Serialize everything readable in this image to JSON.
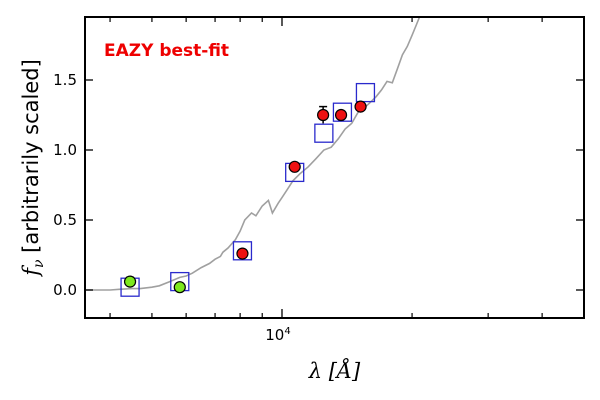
{
  "chart_data": {
    "type": "scatter",
    "title": "",
    "annotation": {
      "text": "EAZY best-fit",
      "color": "#ee0000"
    },
    "ylabel_text": "f",
    "ylabel_subscript": "ν",
    "ylabel_rest": " [arbitrarily scaled]",
    "xlabel_text": "λ [Å]",
    "x_log": true,
    "xlim": [
      3500,
      50000
    ],
    "ylim": [
      -0.2,
      1.95
    ],
    "yticks": [
      0.0,
      0.5,
      1.0,
      1.5
    ],
    "ytick_labels": [
      "0.0",
      "0.5",
      "1.0",
      "1.5"
    ],
    "xtick_major": {
      "value": 10000,
      "label_base": "10",
      "label_exp": "4"
    },
    "xtick_minor": [
      4000,
      5000,
      6000,
      7000,
      8000,
      9000,
      20000,
      30000,
      40000
    ],
    "grid": false,
    "model_sed": {
      "color": "#a0a0a0",
      "x": [
        3500,
        3800,
        4000,
        4200,
        4500,
        4700,
        5000,
        5200,
        5500,
        5800,
        6000,
        6200,
        6500,
        6800,
        7000,
        7200,
        7300,
        7500,
        7800,
        8000,
        8200,
        8500,
        8700,
        9000,
        9300,
        9500,
        9800,
        10000,
        10300,
        10600,
        11000,
        11500,
        12000,
        12500,
        13000,
        13500,
        14000,
        14500,
        15000,
        15500,
        16000,
        16500,
        17000,
        17500,
        18000,
        18500,
        19000,
        19500,
        20000,
        20500,
        21000
      ],
      "y": [
        0.0,
        0.0,
        0.0,
        0.005,
        0.01,
        0.01,
        0.02,
        0.03,
        0.06,
        0.09,
        0.1,
        0.12,
        0.16,
        0.19,
        0.22,
        0.24,
        0.27,
        0.3,
        0.36,
        0.42,
        0.5,
        0.55,
        0.53,
        0.6,
        0.64,
        0.55,
        0.62,
        0.66,
        0.72,
        0.78,
        0.83,
        0.88,
        0.94,
        1.0,
        1.02,
        1.08,
        1.15,
        1.19,
        1.27,
        1.3,
        1.34,
        1.38,
        1.43,
        1.49,
        1.48,
        1.58,
        1.68,
        1.74,
        1.82,
        1.9,
        1.98
      ]
    },
    "model_photometry": {
      "name": "model",
      "marker": "square",
      "color": "#2a2acc",
      "x": [
        4450,
        5800,
        8100,
        10700,
        12500,
        13800,
        15600
      ],
      "y": [
        0.02,
        0.06,
        0.28,
        0.84,
        1.12,
        1.27,
        1.41
      ]
    },
    "observed": [
      {
        "color": "#7ee81e",
        "x": [
          4450,
          5800
        ],
        "y": [
          0.06,
          0.02
        ],
        "yerr": [
          0.03,
          0.0
        ]
      },
      {
        "color": "#ee1111",
        "x": [
          8100,
          10700,
          12450,
          13700,
          15200
        ],
        "y": [
          0.26,
          0.88,
          1.25,
          1.25,
          1.31
        ],
        "yerr": [
          0.0,
          0.0,
          0.06,
          0.0,
          0.0
        ]
      }
    ]
  }
}
